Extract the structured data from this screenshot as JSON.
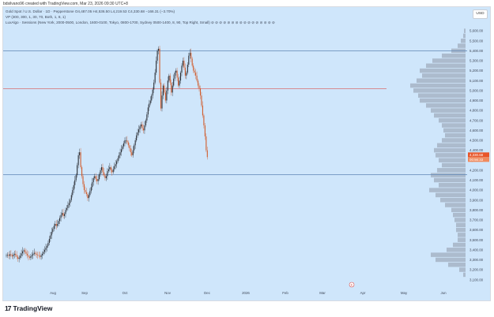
{
  "caption": "bdsilvano96 created with TradingView.com, Mar 23, 2026 09:30 UTC+8",
  "legend": {
    "symbol_line": "Gold Spot / U.S. Dollar · 1D · Pepperstone   O4,487.05  H4,536.50  L4,219.53  C4,330.68  −166.31 (−3.70%)",
    "vp_line": "VP (300, 300, 1, 30, 70, Both, 1, 8, 1)",
    "session_line": "LuxAlgo · Sessions (New York, 2000-0500, London, 1600-0100, Tokyo, 0800-1700, Sydney 0500-1400, 8, 90, Top Right, Small)  ⊘ ⊘ ⊘ ⊘ ⊘ ⊘ ⊘ ⊘ ⊘ ⊘ ⊘ ⊘ ⊘ ⊘ ⊘ ⊘"
  },
  "currency_button": "USD",
  "price_badges": {
    "last": "4,330.68",
    "countdown": "00:56:33"
  },
  "event_marker": "E",
  "brand": "TradingView",
  "colors": {
    "chart_bg": "#cfe6fb",
    "up": "#2a2d34",
    "down": "#d05c2c",
    "level_line": "#5e85b4",
    "red_line": "#d9534f",
    "vp_bar": "#8f98a8",
    "badge": "#e8562a"
  },
  "chart_data": {
    "type": "candlestick",
    "title": "",
    "x_tick_labels": [
      "Aug",
      "Sep",
      "Oct",
      "Nov",
      "Dec",
      "2026",
      "Feb",
      "Mar",
      "Apr",
      "May",
      "Jun"
    ],
    "y_tick_labels": [
      "5,600.00",
      "5,500.00",
      "5,400.00",
      "5,300.00",
      "5,200.00",
      "5,100.00",
      "5,000.00",
      "4,900.00",
      "4,800.00",
      "4,700.00",
      "4,600.00",
      "4,500.00",
      "4,400.00",
      "4,300.00",
      "4,200.00",
      "4,100.00",
      "4,000.00",
      "3,900.00",
      "3,800.00",
      "3,700.00",
      "3,600.00",
      "3,500.00",
      "3,400.00",
      "3,300.00",
      "3,200.00",
      "3,100.00"
    ],
    "ylim": [
      3050,
      5680
    ],
    "horizontal_levels": [
      5400,
      5020,
      4155
    ],
    "series": [
      {
        "values": [
          3345,
          3350,
          3340,
          3355,
          3345,
          3335,
          3350,
          3360,
          3345,
          3330,
          3310,
          3320,
          3340,
          3365,
          3385,
          3395,
          3380,
          3360,
          3345,
          3330,
          3320,
          3335,
          3345,
          3360,
          3370,
          3360,
          3350,
          3345,
          3340,
          3330,
          3345,
          3360,
          3380,
          3400,
          3420,
          3440,
          3470,
          3510,
          3545,
          3580,
          3610,
          3640,
          3660,
          3640,
          3660,
          3690,
          3720,
          3750,
          3770,
          3740,
          3760,
          3800,
          3820,
          3850,
          3870,
          3900,
          3950,
          4000,
          4050,
          4100,
          4150,
          4250,
          4350,
          4380,
          4230,
          4140,
          4060,
          4000,
          3980,
          3960,
          3920,
          3950,
          3990,
          4030,
          4080,
          4120,
          4140,
          4110,
          4090,
          4110,
          4160,
          4200,
          4230,
          4180,
          4150,
          4120,
          4140,
          4190,
          4210,
          4230,
          4200,
          4180,
          4210,
          4240,
          4260,
          4290,
          4320,
          4350,
          4380,
          4410,
          4440,
          4470,
          4500,
          4500,
          4480,
          4450,
          4420,
          4380,
          4350,
          4400,
          4450,
          4500,
          4550,
          4580,
          4610,
          4640,
          4660,
          4620,
          4600,
          4650,
          4700,
          4760,
          4830,
          4870,
          4900,
          4950,
          5010,
          5080,
          5180,
          5300,
          5400,
          5420,
          5080,
          4820,
          4950,
          5050,
          4980,
          4900,
          5000,
          5100,
          5150,
          5080,
          4980,
          5050,
          5120,
          5180,
          5200,
          5130,
          5050,
          5100,
          5180,
          5250,
          5300,
          5230,
          5150,
          5180,
          5260,
          5350,
          5380,
          5320,
          5250,
          5200,
          5180,
          5150,
          5100,
          5050,
          5020,
          4950,
          4850,
          4750,
          4650,
          4540,
          4400,
          4331
        ]
      }
    ],
    "volume_profile_bins": [
      {
        "price": 5600,
        "volume": 2
      },
      {
        "price": 5550,
        "volume": 3
      },
      {
        "price": 5500,
        "volume": 6
      },
      {
        "price": 5450,
        "volume": 10
      },
      {
        "price": 5400,
        "volume": 18
      },
      {
        "price": 5350,
        "volume": 30
      },
      {
        "price": 5300,
        "volume": 42
      },
      {
        "price": 5250,
        "volume": 50
      },
      {
        "price": 5200,
        "volume": 58
      },
      {
        "price": 5150,
        "volume": 55
      },
      {
        "price": 5100,
        "volume": 62
      },
      {
        "price": 5050,
        "volume": 70
      },
      {
        "price": 5000,
        "volume": 66
      },
      {
        "price": 4950,
        "volume": 60
      },
      {
        "price": 4900,
        "volume": 58
      },
      {
        "price": 4850,
        "volume": 50
      },
      {
        "price": 4800,
        "volume": 44
      },
      {
        "price": 4750,
        "volume": 40
      },
      {
        "price": 4700,
        "volume": 34
      },
      {
        "price": 4650,
        "volume": 30
      },
      {
        "price": 4600,
        "volume": 28
      },
      {
        "price": 4550,
        "volume": 26
      },
      {
        "price": 4500,
        "volume": 30
      },
      {
        "price": 4450,
        "volume": 36
      },
      {
        "price": 4400,
        "volume": 40
      },
      {
        "price": 4350,
        "volume": 38
      },
      {
        "price": 4300,
        "volume": 34
      },
      {
        "price": 4250,
        "volume": 30
      },
      {
        "price": 4200,
        "volume": 36
      },
      {
        "price": 4150,
        "volume": 44
      },
      {
        "price": 4100,
        "volume": 40
      },
      {
        "price": 4050,
        "volume": 34
      },
      {
        "price": 4000,
        "volume": 46
      },
      {
        "price": 3950,
        "volume": 38
      },
      {
        "price": 3900,
        "volume": 32
      },
      {
        "price": 3850,
        "volume": 26
      },
      {
        "price": 3800,
        "volume": 18
      },
      {
        "price": 3750,
        "volume": 16
      },
      {
        "price": 3700,
        "volume": 14
      },
      {
        "price": 3650,
        "volume": 12
      },
      {
        "price": 3600,
        "volume": 12
      },
      {
        "price": 3550,
        "volume": 10
      },
      {
        "price": 3500,
        "volume": 10
      },
      {
        "price": 3450,
        "volume": 16
      },
      {
        "price": 3400,
        "volume": 24
      },
      {
        "price": 3350,
        "volume": 44
      },
      {
        "price": 3300,
        "volume": 38
      },
      {
        "price": 3250,
        "volume": 22
      },
      {
        "price": 3200,
        "volume": 8
      },
      {
        "price": 3150,
        "volume": 3
      }
    ]
  }
}
